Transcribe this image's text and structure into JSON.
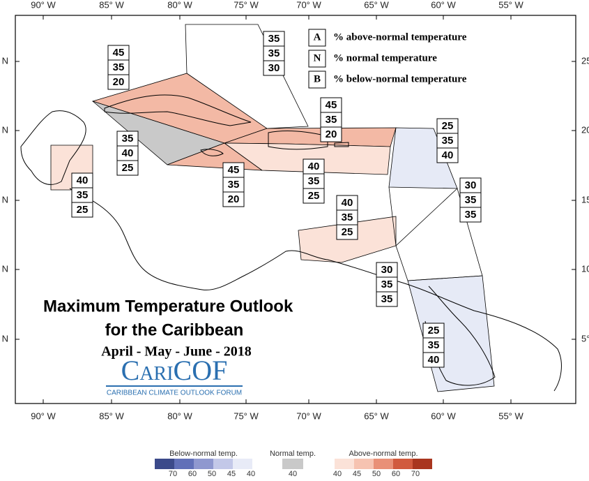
{
  "map": {
    "title": [
      "Maximum Temperature Outlook",
      "for the Caribbean"
    ],
    "period": "April - May - June - 2018",
    "logo": {
      "name": "CariCOF",
      "tagline": "CARIBBEAN CLIMATE OUTLOOK FORUM"
    },
    "longitude_labels": [
      "90° W",
      "85° W",
      "80° W",
      "75° W",
      "70° W",
      "65° W",
      "60° W",
      "55° W"
    ],
    "latitude_labels_left": [
      "N",
      "N",
      "N",
      "N",
      "N"
    ],
    "latitude_labels_right": [
      "25",
      "20",
      "15",
      "10",
      "5°"
    ],
    "key": [
      {
        "letter": "A",
        "text": "% above-normal temperature"
      },
      {
        "letter": "N",
        "text": "% normal temperature"
      },
      {
        "letter": "B",
        "text": "% below-normal temperature"
      }
    ],
    "regions": [
      [
        45,
        35,
        20
      ],
      [
        35,
        35,
        30
      ],
      [
        45,
        35,
        20
      ],
      [
        25,
        35,
        40
      ],
      [
        35,
        40,
        25
      ],
      [
        40,
        35,
        25
      ],
      [
        45,
        35,
        20
      ],
      [
        40,
        35,
        25
      ],
      [
        30,
        35,
        35
      ],
      [
        40,
        35,
        25
      ],
      [
        30,
        35,
        35
      ],
      [
        25,
        35,
        40
      ]
    ],
    "legend": {
      "below": {
        "title": "Below-normal temp.",
        "ticks": [
          70,
          60,
          50,
          45,
          40
        ]
      },
      "normal": {
        "title": "Normal temp.",
        "ticks": [
          40
        ]
      },
      "above": {
        "title": "Above-normal temp.",
        "ticks": [
          40,
          45,
          50,
          60,
          70
        ]
      }
    }
  }
}
